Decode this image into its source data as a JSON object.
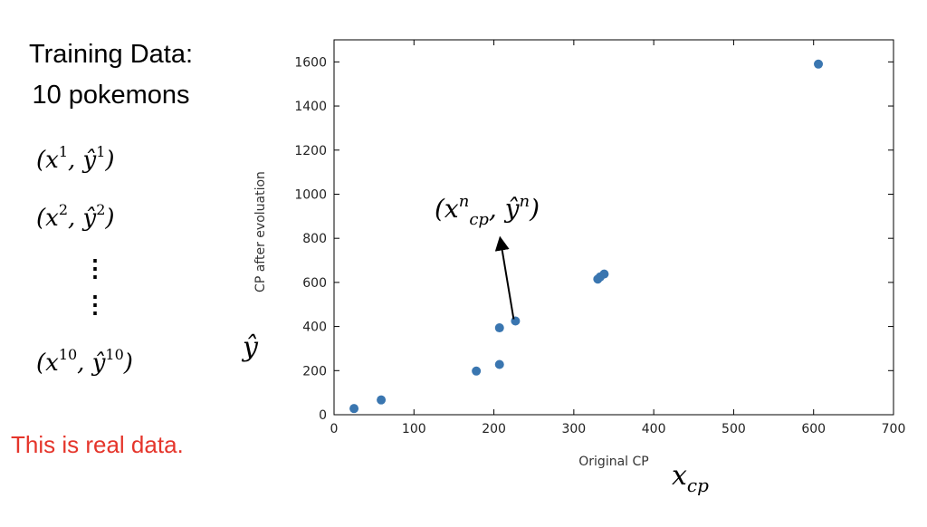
{
  "left_panel": {
    "title_line1": "Training Data:",
    "title_line2": "10 pokemons",
    "sample_first": {
      "x_sup": "1",
      "y_sup": "1"
    },
    "sample_second": {
      "x_sup": "2",
      "y_sup": "2"
    },
    "sample_last": {
      "x_sup": "10",
      "y_sup": "10"
    },
    "note": "This is real data."
  },
  "colors": {
    "note": "#e5352b",
    "points": "#3a76b0"
  },
  "annotation": {
    "sub": "cp",
    "sup": "n",
    "sup2": "n"
  },
  "y_hat_label": "ŷ",
  "x_cp_label": {
    "base": "x",
    "sub": "cp"
  },
  "chart_data": {
    "type": "scatter",
    "xlabel": "Original CP",
    "ylabel": "CP after evoluation",
    "xlim": [
      0,
      700
    ],
    "ylim": [
      0,
      1700
    ],
    "xticks": [
      0,
      100,
      200,
      300,
      400,
      500,
      600,
      700
    ],
    "yticks": [
      0,
      200,
      400,
      600,
      800,
      1000,
      1200,
      1400,
      1600
    ],
    "points": [
      {
        "x": 25,
        "y": 28
      },
      {
        "x": 59,
        "y": 67
      },
      {
        "x": 178,
        "y": 198
      },
      {
        "x": 207,
        "y": 228
      },
      {
        "x": 207,
        "y": 394
      },
      {
        "x": 227,
        "y": 425
      },
      {
        "x": 330,
        "y": 615
      },
      {
        "x": 333,
        "y": 625
      },
      {
        "x": 338,
        "y": 638
      },
      {
        "x": 606,
        "y": 1590
      }
    ],
    "annotated_point": {
      "x": 227,
      "y": 425
    },
    "grid": false
  }
}
